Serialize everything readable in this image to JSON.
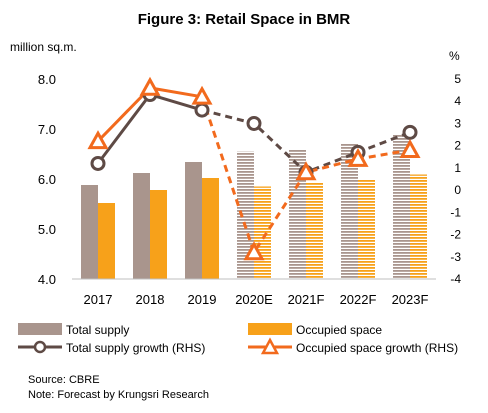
{
  "chart_data": {
    "type": "bar",
    "title": "Figure 3: Retail Space in BMR",
    "ylabel_left": "million sq.m.",
    "ylabel_right": "%",
    "categories": [
      "2017",
      "2018",
      "2019",
      "2020E",
      "2021F",
      "2022F",
      "2023F"
    ],
    "ylim_left": [
      4.0,
      8.0
    ],
    "yticks_left": [
      "4.0",
      "5.0",
      "6.0",
      "7.0",
      "8.0"
    ],
    "ylim_right": [
      -4,
      5
    ],
    "yticks_right": [
      "-4",
      "-3",
      "-2",
      "-1",
      "0",
      "1",
      "2",
      "3",
      "4",
      "5"
    ],
    "forecast_from_index": 3,
    "bar_series": [
      {
        "name": "Total supply",
        "color": "#a9958d",
        "values": [
          5.88,
          6.12,
          6.34,
          6.55,
          6.59,
          6.7,
          6.88
        ]
      },
      {
        "name": "Occupied space",
        "color": "#f7a11a",
        "values": [
          5.52,
          5.78,
          6.02,
          5.85,
          5.92,
          5.99,
          6.09
        ]
      }
    ],
    "line_series": [
      {
        "name": "Total supply growth (RHS)",
        "color": "#5e4a45",
        "axis": "right",
        "marker": "circle",
        "values": [
          1.2,
          4.3,
          3.6,
          3.0,
          0.8,
          1.7,
          2.6
        ]
      },
      {
        "name": "Occupied space growth (RHS)",
        "color": "#f26a1d",
        "axis": "right",
        "marker": "triangle",
        "values": [
          2.2,
          4.6,
          4.2,
          -2.8,
          0.8,
          1.4,
          1.8
        ]
      }
    ],
    "legend_position": "bottom",
    "grid": false
  },
  "notes": {
    "source": "Source: CBRE",
    "note": "Note: Forecast by Krungsri Research"
  }
}
